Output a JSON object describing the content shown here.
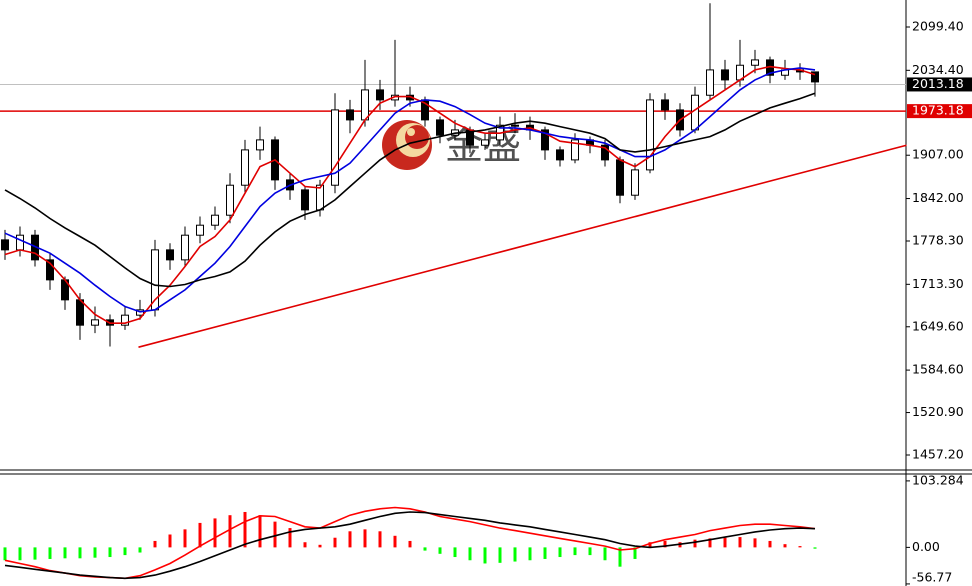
{
  "watermark": "金盛",
  "chart_data": [
    {
      "type": "candlestick",
      "open": [
        1780,
        1765,
        1787,
        1750,
        1720,
        1690,
        1652,
        1660,
        1652,
        1667,
        1675,
        1765,
        1750,
        1787,
        1802,
        1817,
        1862,
        1915,
        1930,
        1870,
        1855,
        1825,
        1862,
        1975,
        1960,
        2005,
        1990,
        1997,
        1990,
        1960,
        1937,
        1945,
        1922,
        1930,
        1952,
        1952,
        1945,
        1915,
        1900,
        1930,
        1922,
        1900,
        1847,
        1885,
        1990,
        1975,
        1945,
        1997,
        2035,
        2020,
        2042,
        2050,
        2027,
        2035,
        2032
      ],
      "high": [
        1795,
        1800,
        1795,
        1760,
        1725,
        1700,
        1680,
        1668,
        1680,
        1690,
        1780,
        1775,
        1800,
        1815,
        1830,
        1880,
        1930,
        1950,
        1935,
        1880,
        1860,
        1870,
        2000,
        1990,
        2050,
        2020,
        2080,
        2010,
        1995,
        1965,
        1960,
        1950,
        1940,
        1965,
        1970,
        1965,
        1950,
        1920,
        1940,
        1935,
        1930,
        1905,
        1895,
        2000,
        2000,
        1985,
        2010,
        2135,
        2050,
        2080,
        2065,
        2055,
        2050,
        2045,
        2030
      ],
      "low": [
        1750,
        1755,
        1740,
        1705,
        1675,
        1630,
        1640,
        1620,
        1645,
        1660,
        1665,
        1735,
        1740,
        1775,
        1795,
        1805,
        1850,
        1900,
        1855,
        1840,
        1810,
        1815,
        1850,
        1940,
        1950,
        1975,
        1980,
        1980,
        1950,
        1925,
        1930,
        1910,
        1915,
        1920,
        1940,
        1930,
        1900,
        1890,
        1895,
        1910,
        1890,
        1835,
        1840,
        1880,
        1960,
        1935,
        1940,
        1990,
        2005,
        2010,
        2030,
        2015,
        2020,
        2020,
        1995
      ],
      "close": [
        1765,
        1787,
        1750,
        1720,
        1690,
        1652,
        1660,
        1652,
        1667,
        1675,
        1765,
        1750,
        1787,
        1802,
        1817,
        1862,
        1915,
        1930,
        1870,
        1855,
        1825,
        1862,
        1975,
        1960,
        2005,
        1990,
        1997,
        1990,
        1960,
        1937,
        1945,
        1922,
        1930,
        1952,
        1952,
        1945,
        1915,
        1900,
        1930,
        1922,
        1900,
        1847,
        1885,
        1990,
        1975,
        1945,
        1997,
        2035,
        2020,
        2042,
        2050,
        2027,
        2035,
        2032,
        2017
      ],
      "up_color": "#ffffff",
      "down_color": "#000000",
      "lines": [
        {
          "color": "#e00000",
          "values": [
            1758,
            1765,
            1760,
            1745,
            1720,
            1690,
            1668,
            1655,
            1655,
            1662,
            1690,
            1712,
            1740,
            1770,
            1785,
            1810,
            1850,
            1890,
            1900,
            1880,
            1860,
            1858,
            1890,
            1925,
            1960,
            1985,
            1995,
            1995,
            1985,
            1970,
            1955,
            1945,
            1940,
            1940,
            1945,
            1948,
            1940,
            1928,
            1925,
            1922,
            1918,
            1900,
            1890,
            1905,
            1935,
            1960,
            1975,
            1990,
            2005,
            2020,
            2035,
            2040,
            2037,
            2035,
            2028
          ]
        },
        {
          "color": "#0000e0",
          "values": [
            1790,
            1780,
            1770,
            1760,
            1745,
            1730,
            1712,
            1695,
            1680,
            1672,
            1675,
            1690,
            1705,
            1725,
            1745,
            1770,
            1800,
            1830,
            1850,
            1862,
            1870,
            1875,
            1880,
            1895,
            1920,
            1945,
            1970,
            1985,
            1990,
            1988,
            1980,
            1968,
            1955,
            1948,
            1948,
            1945,
            1940,
            1935,
            1932,
            1930,
            1925,
            1915,
            1905,
            1905,
            1915,
            1930,
            1945,
            1965,
            1985,
            2005,
            2020,
            2030,
            2035,
            2038,
            2035
          ]
        },
        {
          "color": "#000000",
          "values": [
            1855,
            1842,
            1828,
            1812,
            1798,
            1785,
            1772,
            1755,
            1738,
            1722,
            1712,
            1710,
            1713,
            1720,
            1725,
            1732,
            1748,
            1772,
            1792,
            1808,
            1818,
            1825,
            1840,
            1860,
            1880,
            1900,
            1915,
            1925,
            1930,
            1935,
            1940,
            1942,
            1945,
            1950,
            1955,
            1958,
            1955,
            1950,
            1945,
            1940,
            1932,
            1915,
            1912,
            1915,
            1920,
            1925,
            1930,
            1935,
            1945,
            1958,
            1968,
            1978,
            1985,
            1992,
            2000
          ]
        }
      ],
      "trendline": {
        "color": "#e00000",
        "x": [
          8.9,
          60.1
        ],
        "values": [
          1619,
          1922
        ]
      },
      "hlines": [
        {
          "value": 2013.18,
          "color": "#c0c0c0",
          "label_color": "#000000"
        },
        {
          "value": 1973.18,
          "color": "#e00000",
          "label_color": "#e00000"
        }
      ],
      "ylim": [
        1434.7,
        2139.9
      ],
      "yticks": [
        {
          "value": 2099.4,
          "label": "2099.40"
        },
        {
          "value": 2034.4,
          "label": "2034.40"
        },
        {
          "value": 1907,
          "label": "1907.00"
        },
        {
          "value": 1842,
          "label": "1842.00"
        },
        {
          "value": 1778.3,
          "label": "1778.30"
        },
        {
          "value": 1713.3,
          "label": "1713.30"
        },
        {
          "value": 1649.6,
          "label": "1649.60"
        },
        {
          "value": 1584.6,
          "label": "1584.60"
        },
        {
          "value": 1520.9,
          "label": "1520.90"
        },
        {
          "value": 1457.2,
          "label": "1457.20"
        }
      ]
    },
    {
      "type": "macd",
      "values": [
        -20,
        -20,
        -19,
        -18,
        -17,
        -17,
        -16,
        -15,
        -12,
        -8,
        10,
        20,
        28,
        38,
        45,
        50,
        55,
        50,
        40,
        30,
        8,
        4,
        15,
        25,
        28,
        25,
        18,
        10,
        -5,
        -10,
        -15,
        -20,
        -25,
        -24,
        -22,
        -20,
        -18,
        -15,
        -12,
        -12,
        -20,
        -30,
        -18,
        8,
        10,
        8,
        12,
        14,
        15,
        16,
        14,
        10,
        5,
        2,
        -2
      ],
      "up_color": "#ff0000",
      "down_color": "#00ff00",
      "lines": [
        {
          "color": "#ff0000",
          "values": [
            -20,
            -25,
            -30,
            -36,
            -40,
            -44,
            -46,
            -47,
            -48,
            -44,
            -35,
            -25,
            -12,
            2,
            15,
            28,
            40,
            49,
            48,
            40,
            32,
            30,
            40,
            50,
            56,
            60,
            62,
            60,
            55,
            48,
            44,
            40,
            35,
            30,
            26,
            22,
            18,
            14,
            10,
            6,
            2,
            -4,
            -2,
            6,
            12,
            16,
            20,
            26,
            30,
            34,
            36,
            36,
            34,
            32,
            29
          ]
        },
        {
          "color": "#000000",
          "values": [
            -28,
            -31,
            -34,
            -37,
            -40,
            -43,
            -45,
            -47,
            -48,
            -47,
            -43,
            -37,
            -30,
            -22,
            -13,
            -4,
            5,
            12,
            18,
            24,
            28,
            30,
            32,
            36,
            42,
            48,
            53,
            55,
            54,
            51,
            48,
            45,
            42,
            38,
            35,
            32,
            28,
            24,
            20,
            16,
            12,
            6,
            2,
            0,
            2,
            5,
            8,
            12,
            16,
            20,
            24,
            27,
            29,
            30,
            29
          ]
        }
      ],
      "ylim": [
        -60,
        114
      ],
      "yticks": [
        103.284,
        {
          "value": 0,
          "label": "0.00"
        },
        -56.77
      ]
    }
  ]
}
